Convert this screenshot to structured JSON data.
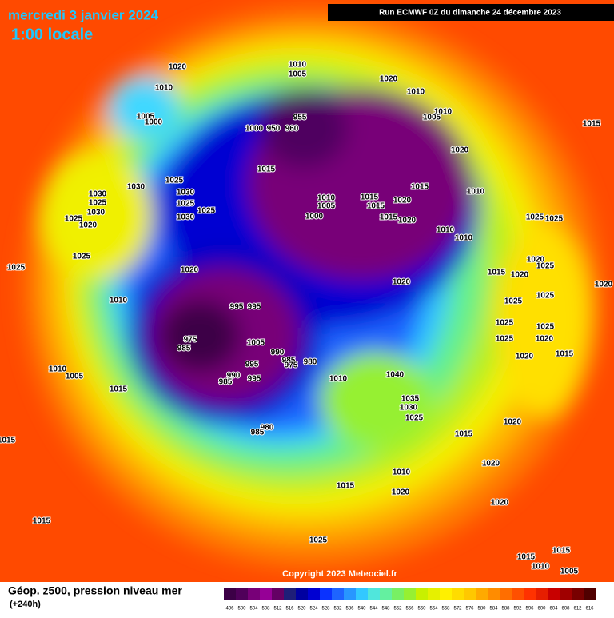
{
  "header": {
    "date": "mercredi 3 janvier 2024",
    "time": "1:00 locale",
    "run": "Run ECMWF 0Z du dimanche 24 décembre 2023"
  },
  "footer": {
    "copyright": "Copyright 2023 Meteociel.fr",
    "title": "Géop. z500, pression niveau mer",
    "lead": "(+240h)"
  },
  "legend": {
    "levels": [
      "496",
      "500",
      "504",
      "508",
      "512",
      "516",
      "520",
      "524",
      "528",
      "532",
      "536",
      "540",
      "544",
      "548",
      "552",
      "556",
      "560",
      "564",
      "568",
      "572",
      "576",
      "580",
      "584",
      "588",
      "592",
      "596",
      "600",
      "604",
      "608",
      "612",
      "616"
    ],
    "colors": [
      "#3c0046",
      "#50005a",
      "#780078",
      "#960096",
      "#640064",
      "#1e1e78",
      "#0000a0",
      "#0000d2",
      "#0a32ff",
      "#1e64ff",
      "#2896ff",
      "#32c8ff",
      "#50e6dc",
      "#64f0a0",
      "#78f064",
      "#96f032",
      "#c8f000",
      "#e6f000",
      "#fff000",
      "#ffdc00",
      "#ffc800",
      "#ffaa00",
      "#ff8c00",
      "#ff6e00",
      "#ff5000",
      "#ff3200",
      "#e61e00",
      "#c80000",
      "#a00000",
      "#780000",
      "#500000"
    ]
  },
  "isobar_labels": [
    "1020",
    "1010",
    "1005",
    "1000",
    "1010",
    "1005",
    "1020",
    "1010",
    "1010",
    "1005",
    "1015",
    "955",
    "1000",
    "950",
    "960",
    "1020",
    "1015",
    "1025",
    "1030",
    "1030",
    "1030",
    "1025",
    "1025",
    "1030",
    "1025",
    "1030",
    "1025",
    "1020",
    "1010",
    "1005",
    "1000",
    "1015",
    "1015",
    "1020",
    "1015",
    "1015",
    "1020",
    "1010",
    "1010",
    "1010",
    "1025",
    "1025",
    "1020",
    "1010",
    "995",
    "995",
    "975",
    "985",
    "1005",
    "990",
    "985",
    "975",
    "980",
    "995",
    "990",
    "985",
    "995",
    "980",
    "985",
    "1010",
    "1040",
    "1035",
    "1030",
    "1025",
    "1015",
    "1010",
    "1005",
    "1015",
    "1020",
    "1025",
    "1025",
    "1020",
    "1025",
    "1015",
    "1020",
    "1025",
    "1025",
    "1025",
    "1025",
    "1020",
    "1025",
    "1020",
    "1015",
    "1020",
    "1020",
    "1015",
    "1020",
    "1020",
    "1015",
    "1010",
    "1020",
    "1015",
    "1025",
    "1015",
    "1015",
    "1015",
    "1010",
    "1005"
  ]
}
